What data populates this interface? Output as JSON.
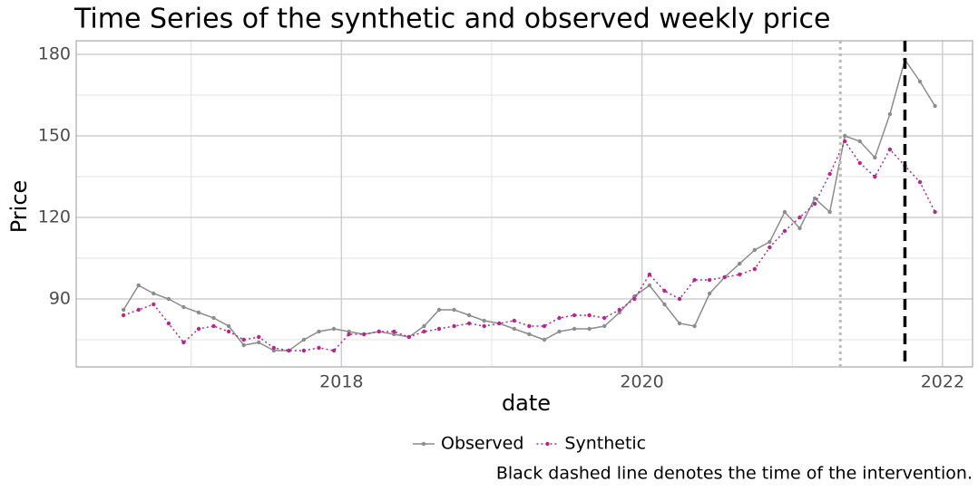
{
  "chart_data": {
    "type": "line",
    "title": "Time Series of the synthetic and observed weekly price",
    "x_label": "date",
    "y_label": "Price",
    "caption": "Black dashed line denotes the time of the intervention.",
    "x": [
      2016.55,
      2016.65,
      2016.75,
      2016.85,
      2016.95,
      2017.05,
      2017.15,
      2017.25,
      2017.35,
      2017.45,
      2017.55,
      2017.65,
      2017.75,
      2017.85,
      2017.95,
      2018.05,
      2018.15,
      2018.25,
      2018.35,
      2018.45,
      2018.55,
      2018.65,
      2018.75,
      2018.85,
      2018.95,
      2019.05,
      2019.15,
      2019.25,
      2019.35,
      2019.45,
      2019.55,
      2019.65,
      2019.75,
      2019.85,
      2019.95,
      2020.05,
      2020.15,
      2020.25,
      2020.35,
      2020.45,
      2020.55,
      2020.65,
      2020.75,
      2020.85,
      2020.95,
      2021.05,
      2021.15,
      2021.25,
      2021.35,
      2021.45,
      2021.55,
      2021.65,
      2021.75,
      2021.85,
      2021.95
    ],
    "series": [
      {
        "name": "Observed",
        "color": "#8c8c8c",
        "values": [
          86,
          95,
          92,
          90,
          87,
          85,
          83,
          80,
          73,
          74,
          71,
          71,
          75,
          78,
          79,
          78,
          77,
          78,
          77,
          76,
          80,
          86,
          86,
          84,
          82,
          81,
          79,
          77,
          75,
          78,
          79,
          79,
          80,
          85,
          91,
          95,
          88,
          81,
          80,
          92,
          98,
          103,
          108,
          111,
          122,
          116,
          127,
          122,
          150,
          148,
          142,
          158,
          178,
          170,
          161
        ]
      },
      {
        "name": "Synthetic",
        "color": "#b5268f",
        "values": [
          84,
          86,
          88,
          81,
          74,
          79,
          80,
          78,
          75,
          76,
          72,
          71,
          71,
          72,
          71,
          77,
          77,
          78,
          78,
          76,
          78,
          79,
          80,
          81,
          80,
          81,
          82,
          80,
          80,
          83,
          84,
          84,
          83,
          86,
          90,
          99,
          93,
          90,
          97,
          97,
          98,
          99,
          101,
          109,
          115,
          120,
          125,
          136,
          148,
          140,
          135,
          145,
          139,
          133,
          122
        ]
      }
    ],
    "xlim": [
      2016.235,
      2022.2
    ],
    "ylim": [
      65,
      185
    ],
    "xticks": [
      2018,
      2020,
      2022
    ],
    "yticks": [
      90,
      120,
      150,
      180
    ],
    "x_minor_grid": [
      2017,
      2019,
      2021
    ],
    "y_minor_grid": [
      75,
      105,
      135,
      165
    ],
    "grid": true,
    "vlines": [
      {
        "value": 2021.32,
        "style": "dotted",
        "color": "#bbbbbb"
      },
      {
        "value": 2021.75,
        "style": "dashed",
        "color": "#000000"
      }
    ],
    "legend": "bottom"
  }
}
